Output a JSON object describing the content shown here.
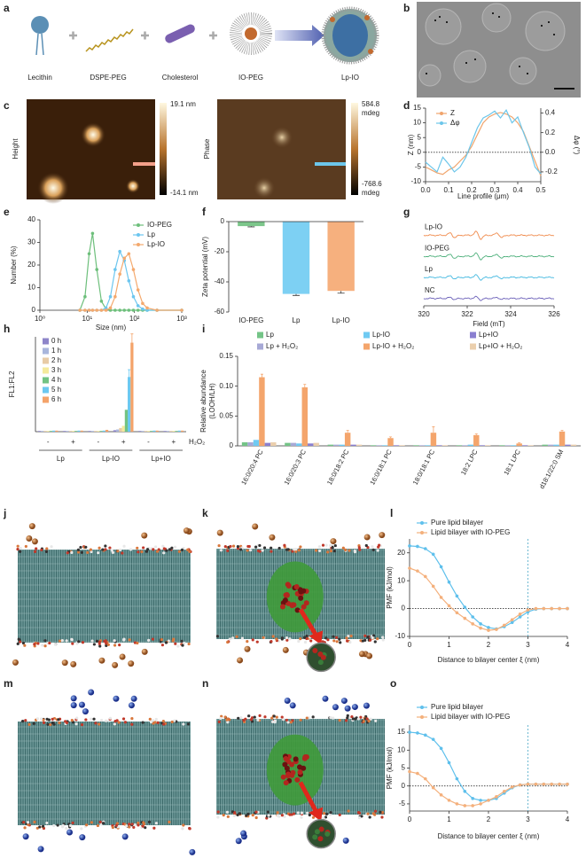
{
  "panel_labels": [
    "a",
    "b",
    "c",
    "d",
    "e",
    "f",
    "g",
    "h",
    "i",
    "j",
    "k",
    "l",
    "m",
    "n",
    "o"
  ],
  "schematic": {
    "components": [
      "Lecithin",
      "DSPE-PEG",
      "Cholesterol",
      "IO-PEG",
      "Lp-IO"
    ]
  },
  "afm": {
    "height": {
      "label": "Height",
      "max": "19.1 nm",
      "min": "-14.1 nm"
    },
    "phase": {
      "label": "Phase",
      "max": [
        "584.8",
        "mdeg"
      ],
      "min": [
        "-768.6",
        "mdeg"
      ]
    }
  },
  "chart_data": [
    {
      "type": "line",
      "xlabel": "Line profile (μm)",
      "ylabel": "Z (nm)",
      "y2label": "Δφ (°)",
      "x": [
        0,
        0.025,
        0.05,
        0.075,
        0.1,
        0.125,
        0.15,
        0.175,
        0.2,
        0.225,
        0.25,
        0.275,
        0.3,
        0.325,
        0.35,
        0.375,
        0.4,
        0.425,
        0.45,
        0.475,
        0.5
      ],
      "xlim": [
        0,
        0.5
      ],
      "xticks": [
        {
          "value": 0,
          "label": "0.0"
        },
        0.1,
        0.2,
        0.3,
        0.4,
        0.5
      ],
      "ylim": [
        -10,
        15
      ],
      "yticks": [
        -10,
        -5,
        0,
        5,
        10,
        15
      ],
      "y2lim": [
        -0.3,
        0.45
      ],
      "y2ticks": [
        -0.2,
        {
          "value": 0,
          "label": "0.0"
        },
        0.2,
        0.4
      ],
      "hline": 0,
      "series": [
        {
          "name": "Z",
          "color": "#f0a46c",
          "values": [
            -5,
            -6,
            -7,
            -7.5,
            -6,
            -5,
            -3,
            -1,
            2,
            6,
            10,
            12,
            13,
            13.5,
            13,
            12,
            10,
            7,
            2,
            -3,
            -8
          ]
        },
        {
          "name": "Δφ",
          "color": "#6cc6ea",
          "axis": "y2",
          "values": [
            -0.1,
            -0.15,
            -0.2,
            -0.05,
            -0.12,
            -0.2,
            -0.15,
            -0.05,
            0.1,
            0.25,
            0.35,
            0.38,
            0.42,
            0.35,
            0.43,
            0.3,
            0.36,
            0.2,
            0.05,
            -0.15,
            -0.22
          ]
        }
      ]
    },
    {
      "type": "line",
      "log_x": true,
      "markers": true,
      "xlabel": "Size (nm)",
      "ylabel": "Number (%)",
      "x": [
        7,
        9,
        11,
        13,
        16,
        20,
        25,
        31,
        39,
        49,
        61,
        76,
        95,
        119,
        149,
        186,
        300,
        1000
      ],
      "xlim": [
        1,
        1000
      ],
      "xticks": [
        {
          "value": 1,
          "label": "10⁰"
        },
        {
          "value": 10,
          "label": "10¹"
        },
        {
          "value": 100,
          "label": "10²"
        },
        {
          "value": 1000,
          "label": "10³"
        }
      ],
      "ylim": [
        0,
        40
      ],
      "yticks": [
        0,
        10,
        20,
        30,
        40
      ],
      "series": [
        {
          "name": "IO-PEG",
          "color": "#6dbf7b",
          "values": [
            0,
            6,
            25,
            34,
            18,
            4,
            0.5,
            0,
            0,
            0,
            0,
            0,
            0,
            0,
            0,
            0,
            0,
            0
          ]
        },
        {
          "name": "Lp",
          "color": "#6cc6ef",
          "values": [
            0,
            0,
            0,
            0,
            0,
            0,
            1,
            6,
            18,
            26,
            22,
            13,
            6,
            2,
            0.5,
            0,
            0,
            0
          ]
        },
        {
          "name": "Lp-IO",
          "color": "#f4a96e",
          "values": [
            0,
            0,
            0,
            0,
            0,
            0,
            0,
            1,
            6,
            16,
            23,
            25,
            18,
            9,
            3,
            1,
            0,
            0
          ]
        }
      ]
    },
    {
      "type": "bar",
      "ylabel": "Zeta potential (mV)",
      "categories": [
        "IO-PEG",
        "Lp",
        "Lp-IO"
      ],
      "values": [
        -3,
        -48,
        -46
      ],
      "errors": [
        0.5,
        1,
        1.5
      ],
      "colors": [
        "#7cc68a",
        "#7dd0f3",
        "#f6b07e"
      ],
      "ylim": [
        -60,
        0
      ],
      "yticks": [
        -60,
        -40,
        -20,
        0
      ]
    },
    {
      "type": "spectra",
      "xlabel": "Field (mT)",
      "xlim": [
        320,
        326
      ],
      "xticks": [
        320,
        322,
        324,
        326
      ],
      "series": [
        {
          "name": "Lp-IO",
          "color": "#f08a4b"
        },
        {
          "name": "IO-PEG",
          "color": "#4caf7a"
        },
        {
          "name": "Lp",
          "color": "#42b8e0"
        },
        {
          "name": "NC",
          "color": "#6a5fb8"
        }
      ]
    },
    {
      "type": "grouped_bar",
      "ylabel": "FL1:FL2",
      "categories": [
        "-",
        "+",
        "-",
        "+",
        "-",
        "+"
      ],
      "groups": [
        "Lp",
        "Lp-IO",
        "Lp+IO"
      ],
      "treatment": "H₂O₂",
      "ylim": [
        0,
        13
      ],
      "series": [
        {
          "name": "0 h",
          "color": "#8e85c9",
          "values": [
            0.1,
            0.1,
            0.1,
            0.2,
            0.1,
            0.1
          ]
        },
        {
          "name": "1 h",
          "color": "#a9b6dc",
          "values": [
            0.1,
            0.1,
            0.1,
            0.3,
            0.1,
            0.1
          ]
        },
        {
          "name": "2 h",
          "color": "#e8cba6",
          "values": [
            0.1,
            0.1,
            0.1,
            0.5,
            0.1,
            0.1
          ]
        },
        {
          "name": "3 h",
          "color": "#f5ea9c",
          "values": [
            0.1,
            0.1,
            0.1,
            0.8,
            0.1,
            0.1
          ]
        },
        {
          "name": "4 h",
          "color": "#72c383",
          "values": [
            0.1,
            0.1,
            0.1,
            3,
            0.1,
            0.1
          ]
        },
        {
          "name": "5 h",
          "color": "#6cc8f0",
          "values": [
            0.1,
            0.1,
            0.1,
            7.5,
            0.1,
            0.1
          ],
          "errors": [
            0,
            0,
            0,
            1,
            0,
            0
          ]
        },
        {
          "name": "6 h",
          "color": "#f4a36a",
          "values": [
            0.1,
            0.1,
            0.2,
            12.2,
            0.1,
            0.1
          ],
          "errors": [
            0,
            0,
            0,
            1.2,
            0,
            0
          ]
        }
      ]
    },
    {
      "type": "grouped_bar",
      "ylabel": [
        "Relative abundance",
        "(LOOH/LH)"
      ],
      "categories": [
        "16:0/20:4 PC",
        "16:0/20:3 PC",
        "18:0/18:2 PC",
        "16:0/18:1 PC",
        "18:0/18:1 PC",
        "18:2 LPC",
        "18:1 LPC",
        "d18:1/22:0 SM"
      ],
      "ylim": [
        0,
        0.15
      ],
      "yticks": [
        0,
        0.05,
        {
          "value": 0.1,
          "label": "0.10"
        },
        0.15
      ],
      "series": [
        {
          "name": "Lp",
          "color": "#74c487",
          "values": [
            0.006,
            0.005,
            0.002,
            0.001,
            0.001,
            0.001,
            0.001,
            0.002
          ]
        },
        {
          "name": "Lp + H₂O₂",
          "color": "#a7a9d6",
          "values": [
            0.006,
            0.005,
            0.002,
            0.001,
            0.001,
            0.001,
            0.001,
            0.002
          ]
        },
        {
          "name": "Lp-IO",
          "color": "#6fcaf2",
          "values": [
            0.01,
            0.004,
            0.002,
            0.001,
            0.001,
            0.002,
            0.001,
            0.002
          ]
        },
        {
          "name": "Lp-IO + H₂O₂",
          "color": "#f4a56c",
          "values": [
            0.115,
            0.098,
            0.022,
            0.013,
            0.022,
            0.018,
            0.004,
            0.024
          ],
          "errors": [
            0.005,
            0.005,
            0.004,
            0.002,
            0.01,
            0.002,
            0.001,
            0.002
          ]
        },
        {
          "name": "Lp+IO",
          "color": "#8a7fd0",
          "values": [
            0.005,
            0.004,
            0.002,
            0.001,
            0.001,
            0.001,
            0.001,
            0.002
          ]
        },
        {
          "name": "Lp+IO + H₂O₂",
          "color": "#ebcfad",
          "values": [
            0.006,
            0.005,
            0.002,
            0.001,
            0.001,
            0.001,
            0.001,
            0.002
          ]
        }
      ]
    },
    {
      "type": "line",
      "markers": true,
      "xlabel": "Distance to bilayer center ξ (nm)",
      "ylabel": "PMF (kJ/mol)",
      "x": [
        0,
        0.2,
        0.4,
        0.6,
        0.8,
        1,
        1.2,
        1.4,
        1.6,
        1.8,
        2,
        2.2,
        2.4,
        2.6,
        2.8,
        3,
        3.2,
        3.4,
        3.6,
        3.8,
        4
      ],
      "xlim": [
        0,
        4
      ],
      "xticks": [
        0,
        1,
        2,
        3,
        4
      ],
      "ylim": [
        -10,
        25
      ],
      "yticks": [
        -10,
        0,
        10,
        20
      ],
      "hline": 0,
      "vline": 3,
      "series": [
        {
          "name": "Pure lipid bilayer",
          "color": "#5fc0ec",
          "values": [
            22.5,
            22.3,
            21.5,
            19.5,
            15,
            9.5,
            4.5,
            0.5,
            -3,
            -5.5,
            -6.8,
            -7.3,
            -6.5,
            -5,
            -3,
            -1.2,
            -0.2,
            0,
            0,
            0,
            0
          ]
        },
        {
          "name": "Lipid bilayer with IO-PEG",
          "color": "#f4b07c",
          "values": [
            14.5,
            13.5,
            11.5,
            8,
            4,
            1,
            -1.5,
            -3.5,
            -5.5,
            -7,
            -7.8,
            -7.5,
            -6,
            -4,
            -2,
            -0.5,
            0,
            0,
            0,
            0,
            0
          ]
        }
      ]
    },
    {
      "type": "line",
      "markers": true,
      "xlabel": "Distance to bilayer center ξ (nm)",
      "ylabel": "PMF (kJ/mol)",
      "x": [
        0,
        0.2,
        0.4,
        0.6,
        0.8,
        1,
        1.2,
        1.4,
        1.6,
        1.8,
        2,
        2.2,
        2.4,
        2.6,
        2.8,
        3,
        3.2,
        3.4,
        3.6,
        3.8,
        4
      ],
      "xlim": [
        0,
        4
      ],
      "xticks": [
        0,
        1,
        2,
        3,
        4
      ],
      "ylim": [
        -7,
        17
      ],
      "yticks": [
        -5,
        0,
        5,
        10,
        15
      ],
      "hline": 0,
      "vline": 3,
      "series": [
        {
          "name": "Pure lipid bilayer",
          "color": "#5fc0ec",
          "values": [
            15,
            14.8,
            14.2,
            13,
            10.5,
            6.5,
            2,
            -1.5,
            -3.5,
            -4,
            -4,
            -3.5,
            -2,
            -0.5,
            0.3,
            0.5,
            0.5,
            0.5,
            0.5,
            0.5,
            0.5
          ]
        },
        {
          "name": "Lipid bilayer with IO-PEG",
          "color": "#f4b07c",
          "values": [
            4,
            3.5,
            2,
            -0.5,
            -2.5,
            -4,
            -5,
            -5.5,
            -5.5,
            -5,
            -4,
            -3,
            -1.5,
            -0.3,
            0.3,
            0.5,
            0.5,
            0.5,
            0.5,
            0.5,
            0.5
          ]
        }
      ]
    }
  ]
}
